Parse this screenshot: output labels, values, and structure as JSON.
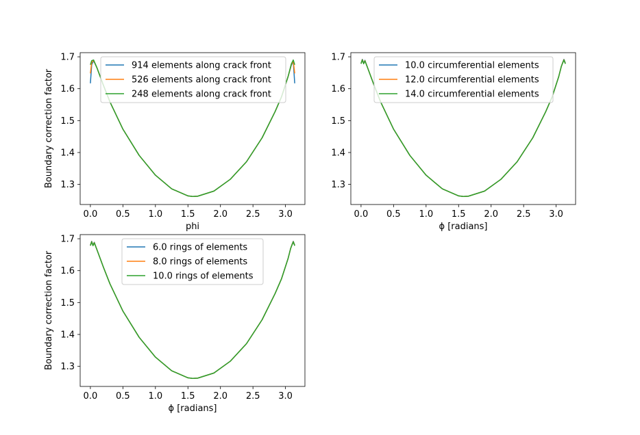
{
  "chart_data": [
    {
      "type": "line",
      "xlabel": "phi",
      "ylabel": "Boundary correction factor",
      "xlim": [
        -0.157,
        3.299
      ],
      "ylim": [
        1.237,
        1.713
      ],
      "xticks": [
        0.0,
        0.5,
        1.0,
        1.5,
        2.0,
        2.5,
        3.0
      ],
      "xtick_labels": [
        "0.0",
        "0.5",
        "1.0",
        "1.5",
        "2.0",
        "2.5",
        "3.0"
      ],
      "yticks": [
        1.3,
        1.4,
        1.5,
        1.6,
        1.7
      ],
      "ytick_labels": [
        "1.3",
        "1.4",
        "1.5",
        "1.6",
        "1.7"
      ],
      "legend_position": "upper-center",
      "grid": false,
      "x": [
        0.0,
        0.02,
        0.05,
        0.1,
        0.2,
        0.3,
        0.5,
        0.75,
        1.0,
        1.25,
        1.5,
        1.571,
        1.65,
        1.9,
        2.15,
        2.4,
        2.64,
        2.84,
        2.94,
        3.04,
        3.09,
        3.12,
        3.142
      ],
      "series": [
        {
          "name": "914 elements along crack front",
          "color": "#1f77b4",
          "values": [
            1.617,
            1.675,
            1.688,
            1.666,
            1.611,
            1.559,
            1.473,
            1.391,
            1.329,
            1.286,
            1.264,
            1.262,
            1.263,
            1.279,
            1.316,
            1.371,
            1.446,
            1.528,
            1.575,
            1.638,
            1.674,
            1.685,
            1.617
          ]
        },
        {
          "name": "526 elements along crack front",
          "color": "#ff7f0e",
          "values": [
            1.648,
            1.682,
            1.689,
            1.666,
            1.611,
            1.559,
            1.473,
            1.391,
            1.329,
            1.286,
            1.264,
            1.262,
            1.263,
            1.279,
            1.316,
            1.371,
            1.446,
            1.528,
            1.575,
            1.638,
            1.676,
            1.687,
            1.648
          ]
        },
        {
          "name": "248 elements along crack front",
          "color": "#2ca02c",
          "values": [
            1.675,
            1.688,
            1.69,
            1.666,
            1.611,
            1.559,
            1.473,
            1.391,
            1.329,
            1.286,
            1.264,
            1.262,
            1.263,
            1.279,
            1.316,
            1.371,
            1.446,
            1.528,
            1.575,
            1.638,
            1.678,
            1.69,
            1.675
          ]
        }
      ]
    },
    {
      "type": "line",
      "xlabel": "ϕ [radians]",
      "ylabel": "",
      "xlim": [
        -0.157,
        3.299
      ],
      "ylim": [
        1.237,
        1.713
      ],
      "xticks": [
        0.0,
        0.5,
        1.0,
        1.5,
        2.0,
        2.5,
        3.0
      ],
      "xtick_labels": [
        "0.0",
        "0.5",
        "1.0",
        "1.5",
        "2.0",
        "2.5",
        "3.0"
      ],
      "yticks": [
        1.3,
        1.4,
        1.5,
        1.6,
        1.7
      ],
      "ytick_labels": [
        "1.3",
        "1.4",
        "1.5",
        "1.6",
        "1.7"
      ],
      "legend_position": "upper-center",
      "grid": false,
      "x": [
        0.0,
        0.02,
        0.04,
        0.06,
        0.1,
        0.2,
        0.3,
        0.5,
        0.75,
        1.0,
        1.25,
        1.5,
        1.571,
        1.65,
        1.9,
        2.15,
        2.4,
        2.64,
        2.84,
        2.94,
        3.04,
        3.08,
        3.1,
        3.12,
        3.142
      ],
      "series": [
        {
          "name": "10.0 circumferential elements",
          "color": "#1f77b4",
          "values": [
            1.68,
            1.692,
            1.68,
            1.689,
            1.666,
            1.611,
            1.559,
            1.473,
            1.391,
            1.329,
            1.286,
            1.264,
            1.262,
            1.263,
            1.279,
            1.316,
            1.371,
            1.446,
            1.528,
            1.575,
            1.638,
            1.67,
            1.682,
            1.692,
            1.68
          ]
        },
        {
          "name": "12.0 circumferential elements",
          "color": "#ff7f0e",
          "values": [
            1.679,
            1.691,
            1.679,
            1.688,
            1.666,
            1.611,
            1.559,
            1.473,
            1.391,
            1.329,
            1.286,
            1.264,
            1.262,
            1.263,
            1.279,
            1.316,
            1.371,
            1.446,
            1.528,
            1.575,
            1.638,
            1.67,
            1.681,
            1.691,
            1.679
          ]
        },
        {
          "name": "14.0 circumferential elements",
          "color": "#2ca02c",
          "values": [
            1.678,
            1.69,
            1.678,
            1.687,
            1.666,
            1.611,
            1.559,
            1.473,
            1.391,
            1.329,
            1.286,
            1.264,
            1.262,
            1.263,
            1.279,
            1.316,
            1.371,
            1.446,
            1.528,
            1.575,
            1.638,
            1.67,
            1.68,
            1.69,
            1.678
          ]
        }
      ]
    },
    {
      "type": "line",
      "xlabel": "ϕ [radians]",
      "ylabel": "Boundary correction factor",
      "xlim": [
        -0.157,
        3.299
      ],
      "ylim": [
        1.237,
        1.713
      ],
      "xticks": [
        0.0,
        0.5,
        1.0,
        1.5,
        2.0,
        2.5,
        3.0
      ],
      "xtick_labels": [
        "0.0",
        "0.5",
        "1.0",
        "1.5",
        "2.0",
        "2.5",
        "3.0"
      ],
      "yticks": [
        1.3,
        1.4,
        1.5,
        1.6,
        1.7
      ],
      "ytick_labels": [
        "1.3",
        "1.4",
        "1.5",
        "1.6",
        "1.7"
      ],
      "legend_position": "upper-center",
      "grid": false,
      "x": [
        0.0,
        0.02,
        0.04,
        0.06,
        0.1,
        0.2,
        0.3,
        0.5,
        0.75,
        1.0,
        1.25,
        1.5,
        1.571,
        1.65,
        1.9,
        2.15,
        2.4,
        2.64,
        2.84,
        2.94,
        3.04,
        3.08,
        3.1,
        3.12,
        3.142
      ],
      "series": [
        {
          "name": "6.0 rings of elements",
          "color": "#1f77b4",
          "values": [
            1.68,
            1.692,
            1.68,
            1.689,
            1.666,
            1.611,
            1.559,
            1.473,
            1.391,
            1.329,
            1.286,
            1.264,
            1.262,
            1.263,
            1.279,
            1.316,
            1.371,
            1.446,
            1.528,
            1.575,
            1.638,
            1.67,
            1.682,
            1.692,
            1.68
          ]
        },
        {
          "name": "8.0 rings of elements",
          "color": "#ff7f0e",
          "values": [
            1.679,
            1.691,
            1.679,
            1.688,
            1.666,
            1.611,
            1.559,
            1.473,
            1.391,
            1.329,
            1.286,
            1.264,
            1.262,
            1.263,
            1.279,
            1.316,
            1.371,
            1.446,
            1.528,
            1.575,
            1.638,
            1.67,
            1.681,
            1.691,
            1.679
          ]
        },
        {
          "name": "10.0 rings of elements",
          "color": "#2ca02c",
          "values": [
            1.678,
            1.69,
            1.678,
            1.687,
            1.666,
            1.611,
            1.559,
            1.473,
            1.391,
            1.329,
            1.286,
            1.264,
            1.262,
            1.263,
            1.279,
            1.316,
            1.371,
            1.446,
            1.528,
            1.575,
            1.638,
            1.67,
            1.68,
            1.69,
            1.678
          ]
        }
      ]
    }
  ]
}
